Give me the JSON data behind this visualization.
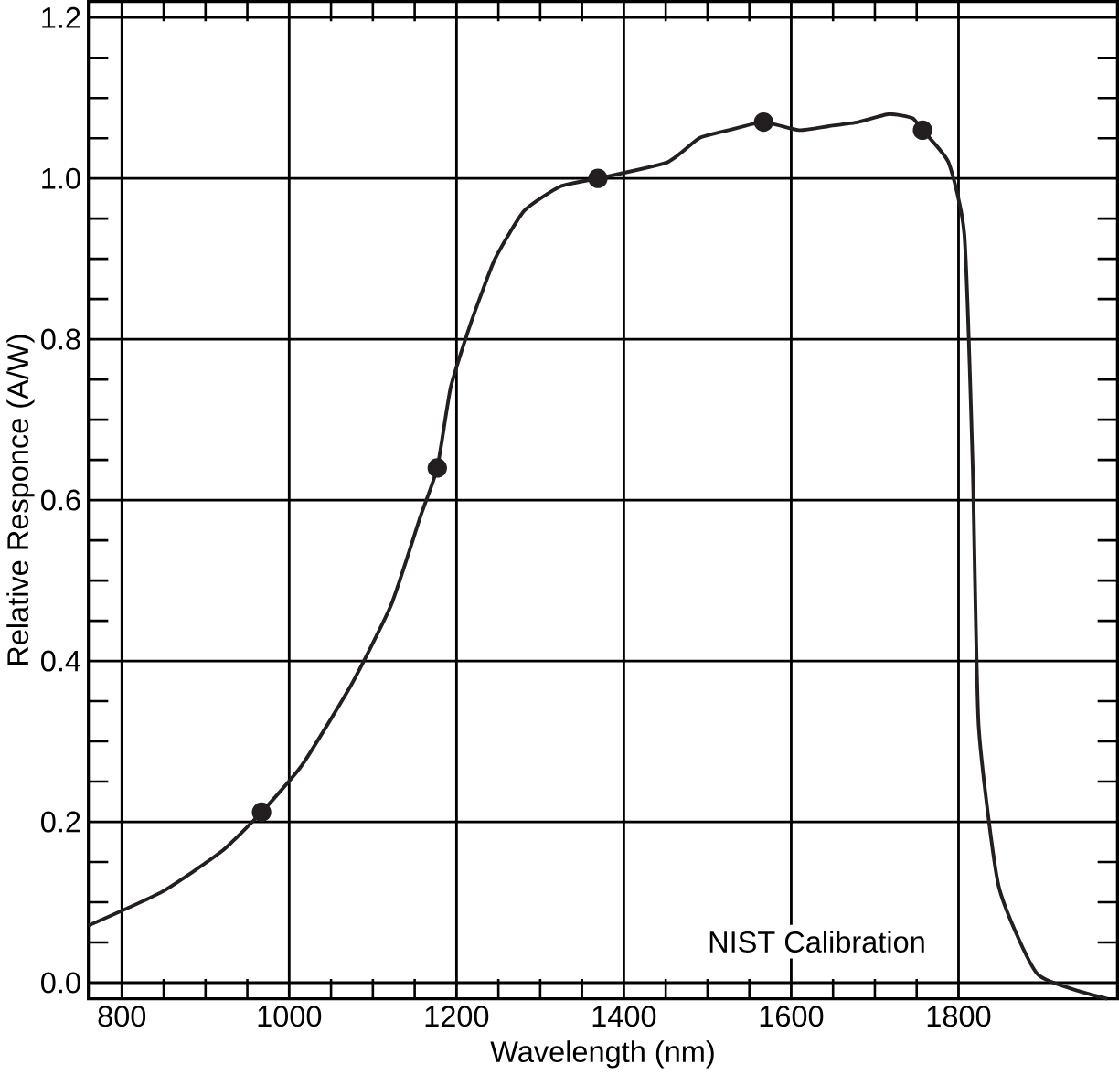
{
  "chart_data": {
    "type": "line",
    "xlabel": "Wavelength (nm)",
    "ylabel": "Relative Responce (A/W)",
    "xlim": [
      760,
      1990
    ],
    "ylim": [
      -0.02,
      1.22
    ],
    "xticks": [
      800,
      1000,
      1200,
      1400,
      1600,
      1800
    ],
    "yticks": [
      {
        "value": 0,
        "label": "0.0"
      },
      {
        "value": 0.2,
        "label": "0.2"
      },
      {
        "value": 0.4,
        "label": "0.4"
      },
      {
        "value": 0.6,
        "label": "0.6"
      },
      {
        "value": 0.8,
        "label": "0.8"
      },
      {
        "value": 1.0,
        "label": "1.0"
      },
      {
        "value": 1.2,
        "label": "1.2"
      }
    ],
    "grid": true,
    "annotations": [
      "NIST Calibration"
    ],
    "series": [
      {
        "color": "#231f20",
        "marker": "none",
        "line_style": "solid",
        "x": [
          760,
          848,
          919,
          967,
          1015,
          1074,
          1122,
          1157,
          1177,
          1193,
          1217,
          1246,
          1281,
          1324,
          1369,
          1452,
          1490,
          1525,
          1567,
          1609,
          1645,
          1680,
          1717,
          1745,
          1757,
          1788,
          1807,
          1817,
          1824,
          1848,
          1895,
          1978
        ],
        "values": [
          0.071,
          0.113,
          0.163,
          0.212,
          0.27,
          0.37,
          0.47,
          0.58,
          0.64,
          0.74,
          0.82,
          0.9,
          0.96,
          0.99,
          1.0,
          1.02,
          1.05,
          1.06,
          1.07,
          1.06,
          1.065,
          1.07,
          1.08,
          1.075,
          1.06,
          1.02,
          0.93,
          0.64,
          0.32,
          0.12,
          0.01,
          -0.02
        ]
      },
      {
        "type": "scatter",
        "color": "#231f20",
        "marker": "circle",
        "x": [
          967,
          1177,
          1369,
          1567,
          1757
        ],
        "values": [
          0.212,
          0.64,
          1.0,
          1.07,
          1.06
        ]
      }
    ]
  }
}
